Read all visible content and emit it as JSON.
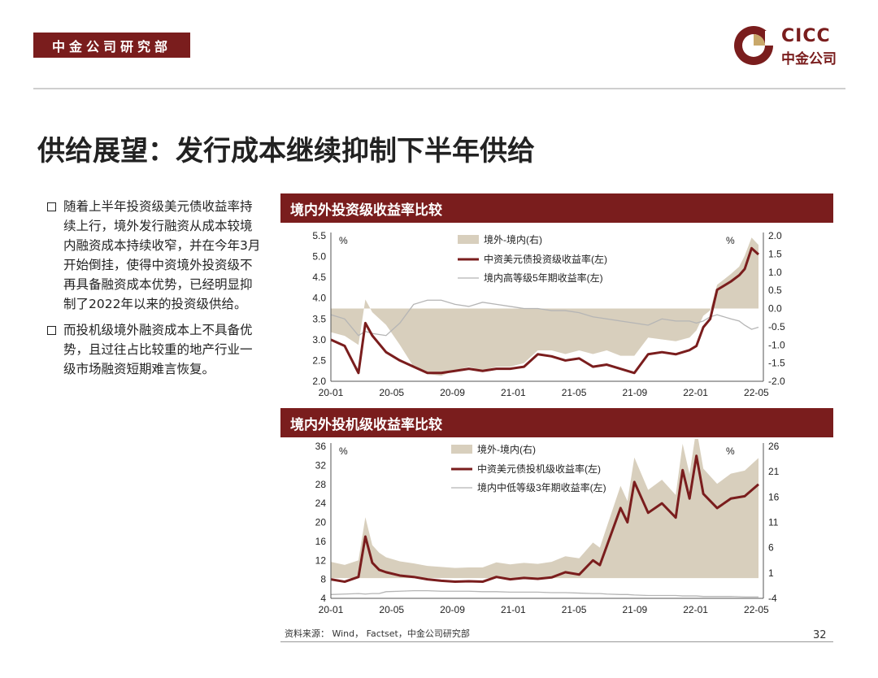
{
  "header": {
    "department": "中金公司研究部"
  },
  "logo": {
    "brand_en": "CICC",
    "brand_cn": "中金公司",
    "color": "#7a1d1d"
  },
  "page_title": "供给展望：发行成本继续抑制下半年供给",
  "bullets": [
    "随着上半年投资级美元债收益率持续上行，境外发行融资从成本较境内融资成本持续收窄，并在今年3月开始倒挂，使得中资境外投资级不再具备融资成本优势，已经明显抑制了2022年以来的投资级供给。",
    "而投机级境外融资成本上不具备优势，且过往占比较重的地产行业一级市场融资短期难言恢复。"
  ],
  "panels": {
    "ig_title": "境内外投资级收益率比较",
    "hy_title": "境内外投机级收益率比较"
  },
  "footer": {
    "source": "资料来源： Wind， Factset，中金公司研究部",
    "page": "32"
  },
  "colors": {
    "brand": "#7a1d1d",
    "spread_fill": "#d8cfbd",
    "domestic_line": "#b5b5b5"
  },
  "chart_data": [
    {
      "type": "line",
      "title": "境内外投资级收益率比较",
      "y_left_label": "%",
      "y_right_label": "%",
      "ylim_left": [
        2.0,
        5.5
      ],
      "ylim_right": [
        -2.0,
        2.0
      ],
      "yticks_left": [
        "5.5",
        "5.0",
        "4.5",
        "4.0",
        "3.5",
        "3.0",
        "2.5",
        "2.0"
      ],
      "yticks_right": [
        "2.0",
        "1.5",
        "1.0",
        "0.5",
        "0.0",
        "-0.5",
        "-1.0",
        "-1.5",
        "-2.0"
      ],
      "xticks": [
        "20-01",
        "20-05",
        "20-09",
        "21-01",
        "21-05",
        "21-09",
        "22-01",
        "22-05"
      ],
      "legend": [
        "境外-境内(右)",
        "中资美元债投资级收益率(左)",
        "境内高等级5年期收益率(左)"
      ],
      "x": [
        0,
        1,
        2,
        2.5,
        3,
        4,
        5,
        6,
        7,
        8,
        9,
        10,
        11,
        12,
        13,
        14,
        15,
        16,
        17,
        18,
        19,
        20,
        21,
        22,
        23,
        24,
        25,
        26,
        26.5,
        27,
        27.5,
        28,
        29,
        29.6,
        30,
        30.5,
        31
      ],
      "series": [
        {
          "name": "中资美元债投资级收益率(左)",
          "axis": "left",
          "values": [
            3.0,
            2.85,
            2.2,
            3.4,
            3.1,
            2.7,
            2.5,
            2.35,
            2.2,
            2.2,
            2.25,
            2.3,
            2.25,
            2.3,
            2.3,
            2.35,
            2.65,
            2.6,
            2.5,
            2.55,
            2.35,
            2.4,
            2.3,
            2.2,
            2.65,
            2.7,
            2.65,
            2.75,
            2.85,
            3.3,
            3.5,
            4.2,
            4.4,
            4.55,
            4.7,
            5.2,
            5.05
          ]
        },
        {
          "name": "境内高等级5年期收益率(左)",
          "axis": "left",
          "values": [
            3.6,
            3.5,
            3.1,
            3.2,
            3.15,
            3.1,
            3.4,
            3.85,
            3.95,
            3.95,
            3.85,
            3.8,
            3.9,
            3.85,
            3.8,
            3.75,
            3.75,
            3.7,
            3.7,
            3.65,
            3.55,
            3.5,
            3.45,
            3.4,
            3.35,
            3.5,
            3.45,
            3.45,
            3.4,
            3.45,
            3.55,
            3.6,
            3.5,
            3.45,
            3.35,
            3.25,
            3.3
          ]
        },
        {
          "name": "境外-境内(右)",
          "axis": "right",
          "values": [
            -0.65,
            -0.75,
            -1.0,
            0.25,
            -0.1,
            -0.45,
            -1.0,
            -1.6,
            -1.8,
            -1.85,
            -1.7,
            -1.6,
            -1.7,
            -1.6,
            -1.6,
            -1.5,
            -1.15,
            -1.15,
            -1.25,
            -1.15,
            -1.25,
            -1.15,
            -1.3,
            -1.3,
            -0.8,
            -0.85,
            -0.9,
            -0.8,
            -0.6,
            -0.2,
            -0.05,
            0.65,
            0.95,
            1.15,
            1.45,
            1.95,
            1.75
          ]
        }
      ]
    },
    {
      "type": "line",
      "title": "境内外投机级收益率比较",
      "y_left_label": "%",
      "y_right_label": "%",
      "ylim_left": [
        4,
        36
      ],
      "ylim_right": [
        -4,
        26
      ],
      "yticks_left": [
        "36",
        "32",
        "28",
        "24",
        "20",
        "16",
        "12",
        "8",
        "4"
      ],
      "yticks_right": [
        "26",
        "21",
        "16",
        "11",
        "6",
        "1",
        "-4"
      ],
      "xticks": [
        "20-01",
        "20-05",
        "20-09",
        "21-01",
        "21-05",
        "21-09",
        "22-01",
        "22-05"
      ],
      "legend": [
        "境外-境内(右)",
        "中资美元债投机级收益率(左)",
        "境内中低等级3年期收益率(左)"
      ],
      "x": [
        0,
        1,
        2,
        2.5,
        3,
        3.5,
        4,
        5,
        6,
        7,
        8,
        9,
        10,
        11,
        12,
        13,
        14,
        15,
        16,
        17,
        18,
        19,
        19.5,
        20,
        21,
        21.5,
        22,
        23,
        24,
        25,
        25.5,
        26,
        26.5,
        27,
        28,
        29,
        30,
        31
      ],
      "series": [
        {
          "name": "中资美元债投机级收益率(左)",
          "axis": "left",
          "values": [
            8.0,
            7.5,
            8.5,
            17.0,
            11.5,
            10.0,
            9.5,
            8.8,
            8.5,
            8.0,
            7.7,
            7.5,
            7.6,
            7.5,
            8.5,
            8.0,
            8.3,
            8.1,
            8.4,
            9.5,
            9.0,
            12.0,
            11.0,
            15.0,
            23.0,
            20.0,
            28.5,
            22.0,
            24.0,
            21.0,
            31.0,
            25.0,
            34.0,
            26.0,
            23.0,
            25.0,
            25.5,
            28.0
          ]
        },
        {
          "name": "境内中低等级3年期收益率(左)",
          "axis": "left",
          "values": [
            4.8,
            4.9,
            5.0,
            4.9,
            5.0,
            5.0,
            5.4,
            5.5,
            5.6,
            5.6,
            5.5,
            5.5,
            5.5,
            5.4,
            5.4,
            5.3,
            5.3,
            5.3,
            5.2,
            5.2,
            5.1,
            5.0,
            5.0,
            4.9,
            4.8,
            4.8,
            4.7,
            4.6,
            4.6,
            4.6,
            4.5,
            4.5,
            4.5,
            4.4,
            4.4,
            4.4,
            4.3,
            4.3
          ]
        },
        {
          "name": "境外-境内(右)",
          "axis": "right",
          "values": [
            3.2,
            2.6,
            3.5,
            12.0,
            6.5,
            5.0,
            4.1,
            3.3,
            2.9,
            2.4,
            2.2,
            2.0,
            2.1,
            2.1,
            3.1,
            2.7,
            3.0,
            2.8,
            3.2,
            4.3,
            3.9,
            7.0,
            6.0,
            10.1,
            18.2,
            15.2,
            23.8,
            17.4,
            19.4,
            16.4,
            26.5,
            20.5,
            29.5,
            21.6,
            18.6,
            20.6,
            21.2,
            23.7
          ]
        }
      ]
    }
  ]
}
